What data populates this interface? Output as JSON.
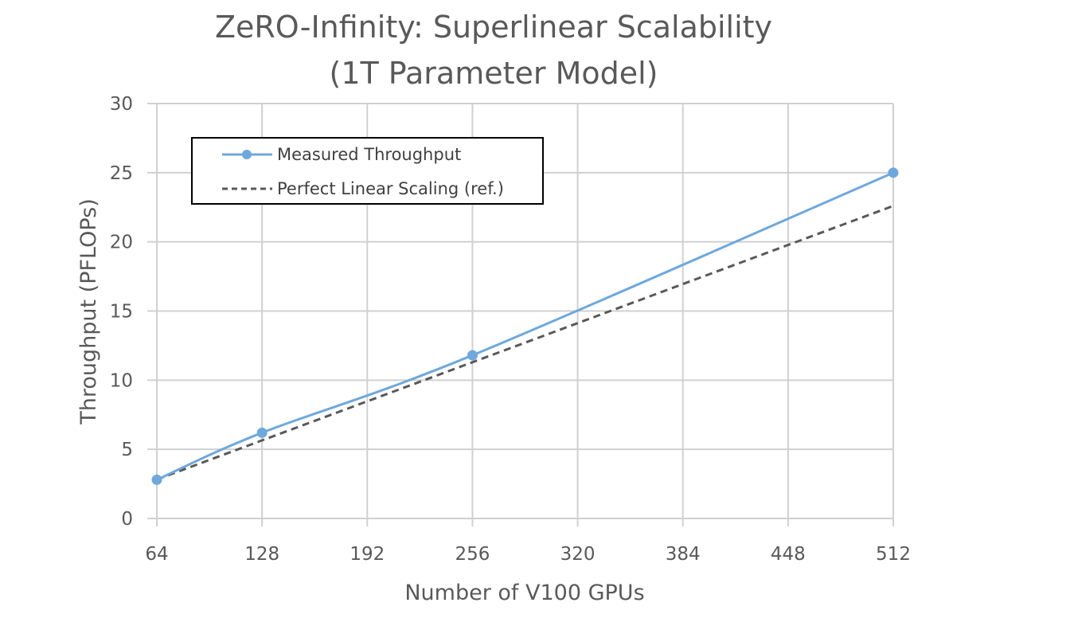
{
  "chart_data": {
    "type": "line",
    "title": [
      "ZeRO-Infinity: Superlinear Scalability",
      "(1T Parameter Model)"
    ],
    "xlabel": "Number of V100 GPUs",
    "ylabel": "Throughput (PFLOPs)",
    "xlim": [
      64,
      512
    ],
    "ylim": [
      0,
      30
    ],
    "x_ticks": [
      64,
      128,
      192,
      256,
      320,
      384,
      448,
      512
    ],
    "y_ticks": [
      0,
      5,
      10,
      15,
      20,
      25,
      30
    ],
    "grid": true,
    "legend_position": "top-left",
    "series": [
      {
        "name": "Measured Throughput",
        "x": [
          64,
          128,
          256,
          512
        ],
        "values": [
          2.8,
          6.2,
          11.8,
          25.0
        ],
        "color": "#6fa8dc",
        "style": "solid",
        "markers": true
      },
      {
        "name": "Perfect Linear Scaling (ref.)",
        "x": [
          64,
          512
        ],
        "values": [
          2.82,
          22.6
        ],
        "color": "#595959",
        "style": "dashed",
        "markers": false
      }
    ]
  }
}
